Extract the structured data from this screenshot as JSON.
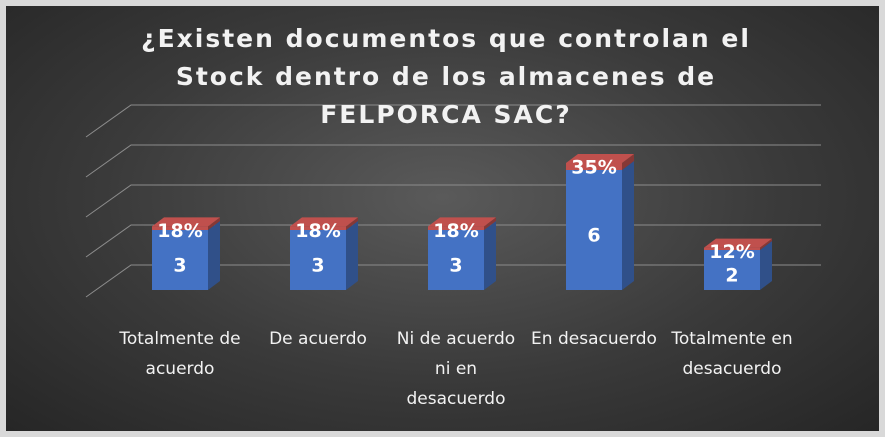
{
  "chart_data": {
    "type": "bar3d",
    "title": "¿Existen documentos que controlan el Stock dentro de los almacenes de FELPORCA SAC?",
    "categories": [
      "Totalmente de acuerdo",
      "De acuerdo",
      "Ni de acuerdo ni en desacuerdo",
      "En desacuerdo",
      "Totalmente en desacuerdo"
    ],
    "series": [
      {
        "color": "#4472c4",
        "values": [
          3,
          3,
          3,
          6,
          2
        ]
      },
      {
        "color": "#c0504d",
        "values": [
          0.18,
          0.18,
          0.18,
          0.35,
          0.12
        ],
        "value_labels": [
          "18%",
          "18%",
          "18%",
          "35%",
          "12%"
        ]
      }
    ],
    "ylim": [
      0,
      8
    ],
    "yticks": [
      0,
      2,
      4,
      6,
      8
    ],
    "grid": true
  }
}
